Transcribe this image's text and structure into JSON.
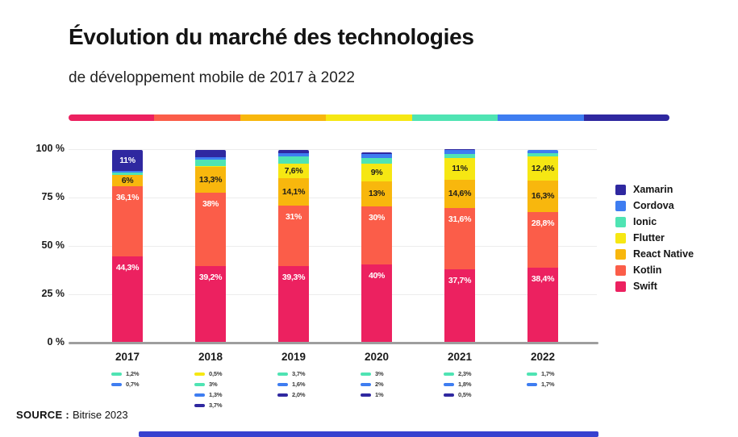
{
  "header": {
    "title": "Évolution du marché des technologies",
    "subtitle": "de développement mobile de 2017 à 2022"
  },
  "divider": {
    "colors": [
      "#EC2160",
      "#FB5D49",
      "#F8B70D",
      "#F6E713",
      "#4FE4B3",
      "#3E7DF1",
      "#2F28A0"
    ]
  },
  "legend": {
    "position": "right",
    "items": [
      {
        "name": "Xamarin",
        "color": "#2F28A0"
      },
      {
        "name": "Cordova",
        "color": "#3E7DF1"
      },
      {
        "name": "Ionic",
        "color": "#4FE4B3"
      },
      {
        "name": "Flutter",
        "color": "#F6E713"
      },
      {
        "name": "React Native",
        "color": "#F8B70D"
      },
      {
        "name": "Kotlin",
        "color": "#FB5D49"
      },
      {
        "name": "Swift",
        "color": "#EC2160"
      }
    ]
  },
  "chart_data": {
    "type": "bar",
    "stacked": true,
    "title": "Évolution du marché des technologies de développement mobile de 2017 à 2022",
    "categories": [
      "2017",
      "2018",
      "2019",
      "2020",
      "2021",
      "2022"
    ],
    "y_ticks": [
      {
        "value": 100,
        "label": "100 %"
      },
      {
        "value": 75,
        "label": "75 %"
      },
      {
        "value": 50,
        "label": "50 %"
      },
      {
        "value": 25,
        "label": "25 %"
      },
      {
        "value": 0,
        "label": "0 %"
      }
    ],
    "ylim": [
      0,
      100
    ],
    "grid": true,
    "legend_position": "right",
    "series": [
      {
        "name": "Swift",
        "color": "#EC2160",
        "label_color": "#ffffff",
        "values": [
          44.3,
          39.2,
          39.3,
          40,
          37.7,
          38.4
        ],
        "labels": [
          "44,3%",
          "39,2%",
          "39,3%",
          "40%",
          "37,7%",
          "38,4%"
        ]
      },
      {
        "name": "Kotlin",
        "color": "#FB5D49",
        "label_color": "#ffffff",
        "values": [
          36.1,
          38,
          31,
          30,
          31.6,
          28.8
        ],
        "labels": [
          "36,1%",
          "38%",
          "31%",
          "30%",
          "31,6%",
          "28,8%"
        ]
      },
      {
        "name": "React Native",
        "color": "#F8B70D",
        "label_color": "#1f1e1a",
        "values": [
          6,
          13.3,
          14.1,
          13,
          14.6,
          16.3
        ],
        "labels": [
          "6%",
          "13,3%",
          "14,1%",
          "13%",
          "14,6%",
          "16,3%"
        ]
      },
      {
        "name": "Flutter",
        "color": "#F6E713",
        "label_color": "#1f1e1a",
        "values": [
          0,
          0.5,
          7.6,
          9,
          11,
          12.4
        ],
        "labels": [
          null,
          null,
          "7,6%",
          "9%",
          "11%",
          "12,4%"
        ]
      },
      {
        "name": "Ionic",
        "color": "#4FE4B3",
        "label_color": "#1f1e1a",
        "values": [
          1.2,
          3,
          3.7,
          3,
          2.3,
          1.7
        ],
        "labels": [
          null,
          null,
          null,
          null,
          null,
          null
        ]
      },
      {
        "name": "Cordova",
        "color": "#3E7DF1",
        "label_color": "#ffffff",
        "values": [
          0.7,
          1.3,
          1.6,
          2,
          1.8,
          1.7
        ],
        "labels": [
          null,
          null,
          null,
          null,
          null,
          null
        ]
      },
      {
        "name": "Xamarin",
        "color": "#2F28A0",
        "label_color": "#ffffff",
        "values": [
          11,
          3.7,
          2,
          1,
          0.5,
          0
        ],
        "labels": [
          "11%",
          null,
          null,
          null,
          null,
          null
        ]
      }
    ],
    "footnotes": [
      [
        {
          "series": "Ionic",
          "label": "1,2%"
        },
        {
          "series": "Cordova",
          "label": "0,7%"
        }
      ],
      [
        {
          "series": "Flutter",
          "label": "0,5%"
        },
        {
          "series": "Ionic",
          "label": "3%"
        },
        {
          "series": "Cordova",
          "label": "1,3%"
        },
        {
          "series": "Xamarin",
          "label": "3,7%"
        }
      ],
      [
        {
          "series": "Ionic",
          "label": "3,7%"
        },
        {
          "series": "Cordova",
          "label": "1,6%"
        },
        {
          "series": "Xamarin",
          "label": "2,0%"
        }
      ],
      [
        {
          "series": "Ionic",
          "label": "3%"
        },
        {
          "series": "Cordova",
          "label": "2%"
        },
        {
          "series": "Xamarin",
          "label": "1%"
        }
      ],
      [
        {
          "series": "Ionic",
          "label": "2,3%"
        },
        {
          "series": "Cordova",
          "label": "1,8%"
        },
        {
          "series": "Xamarin",
          "label": "0,5%"
        }
      ],
      [
        {
          "series": "Ionic",
          "label": "1,7%"
        },
        {
          "series": "Cordova",
          "label": "1,7%"
        }
      ]
    ]
  },
  "footer": {
    "source_label": "SOURCE :",
    "source_value": "Bitrise 2023",
    "bottom_bar_color": "#3741CF"
  }
}
